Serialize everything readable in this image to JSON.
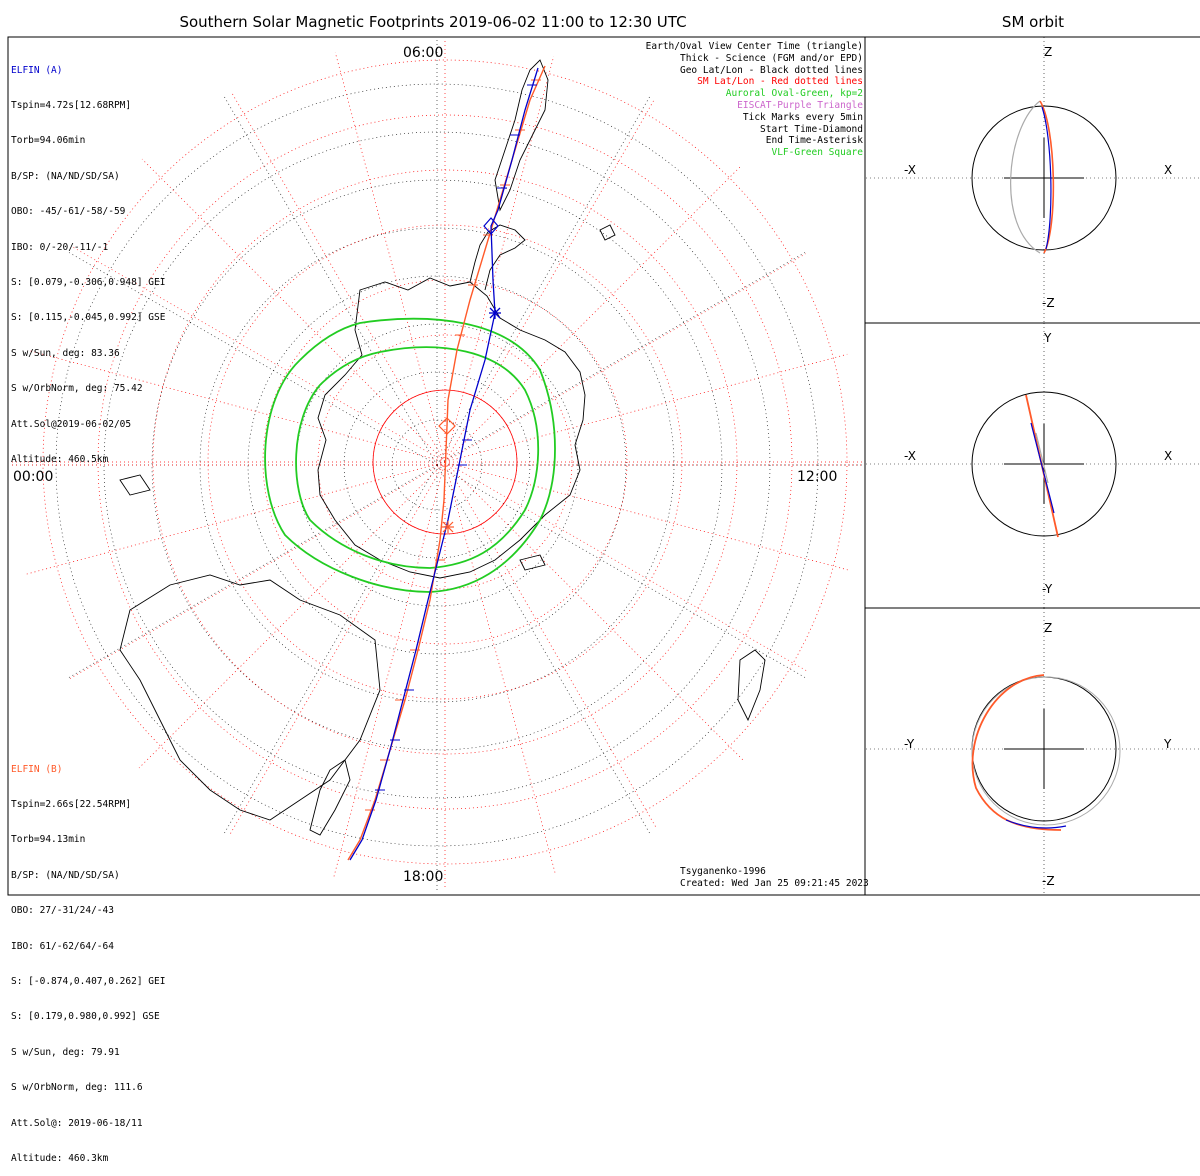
{
  "title": "Southern Solar Magnetic Footprints 2019-06-02 11:00 to 12:30 UTC",
  "orbit_title": "SM orbit",
  "mlt_labels": {
    "top": "06:00",
    "left": "00:00",
    "right": "12:00",
    "bottom": "18:00"
  },
  "elfin_a": {
    "name": "ELFIN (A)",
    "color": "#0000cc",
    "lines": [
      "Tspin=4.72s[12.68RPM]",
      "Torb=94.06min",
      "B/SP: (NA/ND/SD/SA)",
      "OBO: -45/-61/-58/-59",
      "IBO: 0/-20/-11/-1",
      "S: [0.079,-0.306,0.948] GEI",
      "S: [0.115,-0.045,0.992] GSE",
      "S w/Sun, deg: 83.36",
      "S w/OrbNorm, deg: 75.42",
      "Att.Sol@2019-06-02/05",
      "Altitude: 460.5km"
    ]
  },
  "elfin_b": {
    "name": "ELFIN (B)",
    "color": "#ff5a2a",
    "lines": [
      "Tspin=2.66s[22.54RPM]",
      "Torb=94.13min",
      "B/SP: (NA/ND/SD/SA)",
      "OBO: 27/-31/24/-43",
      "IBO: 61/-62/64/-64",
      "S: [-0.874,0.407,0.262] GEI",
      "S: [0.179,0.980,0.992] GSE",
      "S w/Sun, deg: 79.91",
      "S w/OrbNorm, deg: 111.6",
      "Att.Sol@: 2019-06-18/11",
      "Altitude: 460.3km"
    ]
  },
  "legend": [
    {
      "text": "Earth/Oval View Center Time (triangle)",
      "color": "#000000"
    },
    {
      "text": "Thick - Science (FGM and/or EPD)",
      "color": "#000000"
    },
    {
      "text": "Geo Lat/Lon - Black dotted lines",
      "color": "#000000"
    },
    {
      "text": "SM Lat/Lon - Red dotted lines",
      "color": "#ff0000"
    },
    {
      "text": "Auroral Oval-Green, kp=2",
      "color": "#22cc22"
    },
    {
      "text": "EISCAT-Purple Triangle",
      "color": "#cc66cc"
    },
    {
      "text": "Tick Marks every 5min",
      "color": "#000000"
    },
    {
      "text": "Start Time-Diamond",
      "color": "#000000"
    },
    {
      "text": "End Time-Asterisk",
      "color": "#000000"
    },
    {
      "text": "VLF-Green Square",
      "color": "#22cc22"
    }
  ],
  "footer": [
    "Tsyganenko-1996",
    "Created: Wed Jan 25 09:21:45 2023"
  ],
  "orbit_panels": [
    {
      "top": "Z",
      "bottom": "-Z",
      "left": "-X",
      "right": "X"
    },
    {
      "top": "Y",
      "bottom": "-Y",
      "left": "-X",
      "right": "X"
    },
    {
      "top": "Z",
      "bottom": "-Z",
      "left": "-Y",
      "right": "Y"
    }
  ],
  "colors": {
    "oval": "#22cc22",
    "sm_grid": "#ff0000",
    "elfin_a": "#0000cc",
    "elfin_b": "#ff5a2a",
    "orbit_grey": "#aaaaaa"
  },
  "chart_data": {
    "type": "polar footprint map",
    "projection": "south polar, SM magnetic local time",
    "mlt_ticks": [
      "00:00",
      "06:00",
      "12:00",
      "18:00"
    ],
    "series": [
      {
        "name": "ELFIN (A)",
        "start_marker": "diamond",
        "end_marker": "asterisk"
      },
      {
        "name": "ELFIN (B)",
        "start_marker": "diamond",
        "end_marker": "asterisk"
      }
    ]
  }
}
